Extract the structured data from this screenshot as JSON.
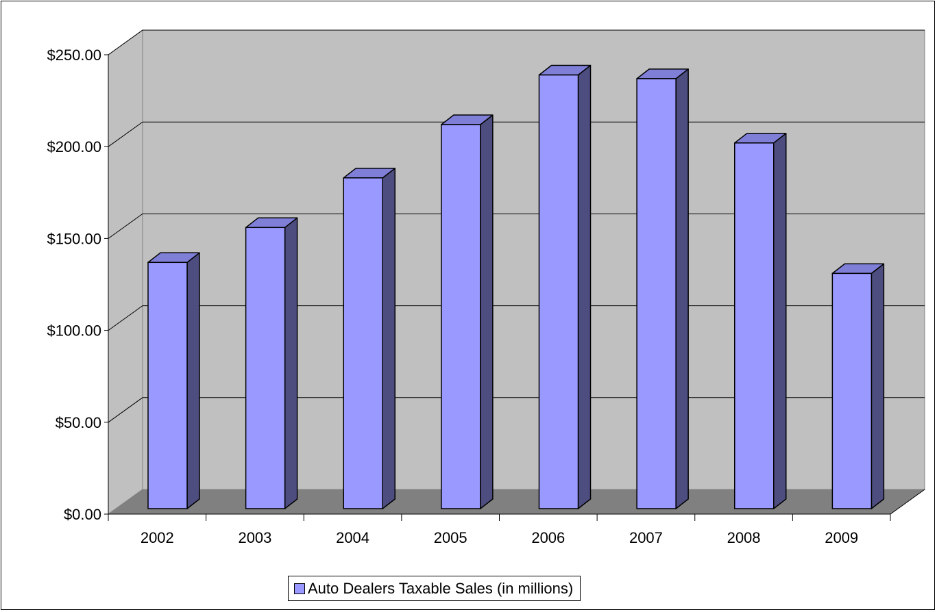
{
  "chart_data": {
    "type": "bar",
    "style": "3d-column",
    "categories": [
      "2002",
      "2003",
      "2004",
      "2005",
      "2006",
      "2007",
      "2008",
      "2009"
    ],
    "series": [
      {
        "name": "Auto Dealers Taxable Sales (in millions)",
        "values": [
          137,
          156,
          183,
          212,
          239,
          237,
          202,
          131
        ],
        "color": "#9999ff",
        "side_color": "#4d4d80"
      }
    ],
    "y_tick_labels": [
      "$0.00",
      "$50.00",
      "$100.00",
      "$150.00",
      "$200.00",
      "$250.00"
    ],
    "ylim": [
      0,
      250
    ],
    "grid": true,
    "legend": "bottom-center",
    "colors": {
      "back_wall": "#c0c0c0",
      "floor": "#808080",
      "axis": "#000000"
    }
  }
}
